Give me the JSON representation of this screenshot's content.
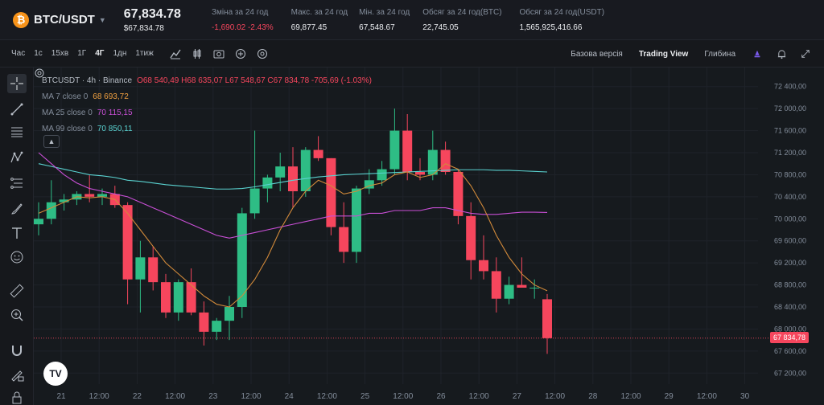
{
  "header": {
    "coin_symbol": "₿",
    "pair": "BTC/USDT",
    "price": "67,834.78",
    "price_usd": "$67,834.78",
    "stats": [
      {
        "label": "Зміна за 24 год",
        "value": "-1,690.02 -2.43%",
        "negative": true
      },
      {
        "label": "Макс. за 24 год",
        "value": "69,877.45"
      },
      {
        "label": "Мін. за 24 год",
        "value": "67,548.67"
      },
      {
        "label": "Обсяг за 24 год(BTC)",
        "value": "22,745.05"
      },
      {
        "label": "Обсяг за 24 год(USDT)",
        "value": "1,565,925,416.66"
      }
    ]
  },
  "toolbar": {
    "timeframes": [
      "Час",
      "1с",
      "15хв",
      "1Г",
      "4Г",
      "1дн",
      "1тиж"
    ],
    "active_timeframe": "4Г",
    "tool_icons": [
      "indicator-icon",
      "chart-type-icon",
      "screenshot-icon",
      "add-icon",
      "settings-icon"
    ],
    "view_tabs": [
      "Базова версія",
      "Trading View",
      "Глибина"
    ],
    "active_view": "Trading View",
    "right_icons": [
      "profile-icon",
      "alert-icon",
      "fullscreen-icon"
    ]
  },
  "left_tools": [
    "crosshair-icon",
    "trendline-icon",
    "horizontal-lines-icon",
    "pattern-icon",
    "fib-icon",
    "brush-icon",
    "text-icon",
    "emoji-icon",
    "ruler-icon",
    "zoom-in-icon",
    "magnet-icon",
    "lock-drawing-icon",
    "lock-icon"
  ],
  "legend": {
    "title": "BTCUSDT · 4h · Binance",
    "ohlc": "O68 540,49 H68 635,07 L67 548,67 C67 834,78 -705,69 (-1.03%)",
    "ma": [
      {
        "label": "MA 7 close 0",
        "value": "68 693,72",
        "color": "#f0a040"
      },
      {
        "label": "MA 25 close 0",
        "value": "70 115,15",
        "color": "#c94fd6"
      },
      {
        "label": "MA 99 close 0",
        "value": "70 850,11",
        "color": "#5ad3d1"
      }
    ]
  },
  "last_price_tag": "67 834,78",
  "logo_text": "TV",
  "chart_data": {
    "type": "candlestick",
    "y_ticks": [
      "72 400,00",
      "72 000,00",
      "71 600,00",
      "71 200,00",
      "70 800,00",
      "70 400,00",
      "70 000,00",
      "69 600,00",
      "69 200,00",
      "68 800,00",
      "68 400,00",
      "68 000,00",
      "67 600,00",
      "67 200,00"
    ],
    "x_ticks": [
      "21",
      "12:00",
      "22",
      "12:00",
      "23",
      "12:00",
      "24",
      "12:00",
      "25",
      "12:00",
      "26",
      "12:00",
      "27",
      "12:00",
      "28",
      "12:00",
      "29",
      "12:00",
      "30"
    ],
    "ylim": [
      67000,
      72600
    ],
    "candles": [
      [
        69900,
        70300,
        69700,
        70000
      ],
      [
        70000,
        70700,
        69900,
        70300
      ],
      [
        70300,
        70450,
        70150,
        70350
      ],
      [
        70350,
        70500,
        70250,
        70450
      ],
      [
        70450,
        70800,
        70300,
        70400
      ],
      [
        70400,
        70550,
        70250,
        70450
      ],
      [
        70450,
        70600,
        70200,
        70250
      ],
      [
        70250,
        70300,
        68450,
        68900
      ],
      [
        68900,
        69600,
        68300,
        69300
      ],
      [
        69300,
        69500,
        68700,
        68850
      ],
      [
        68850,
        69000,
        68200,
        68300
      ],
      [
        68300,
        68900,
        68150,
        68850
      ],
      [
        68850,
        69100,
        68250,
        68300
      ],
      [
        68300,
        68500,
        67700,
        67950
      ],
      [
        67950,
        68200,
        67800,
        68150
      ],
      [
        68150,
        68600,
        67800,
        68400
      ],
      [
        68400,
        70200,
        68200,
        70100
      ],
      [
        70100,
        71600,
        70000,
        70550
      ],
      [
        70550,
        70800,
        70300,
        70750
      ],
      [
        70750,
        71200,
        70500,
        70950
      ],
      [
        70950,
        71300,
        70200,
        70500
      ],
      [
        70500,
        71300,
        70400,
        71250
      ],
      [
        71250,
        71500,
        71050,
        71100
      ],
      [
        71100,
        71100,
        69700,
        69850
      ],
      [
        69850,
        70300,
        69200,
        69400
      ],
      [
        69400,
        70600,
        69200,
        70550
      ],
      [
        70550,
        70900,
        70450,
        70700
      ],
      [
        70700,
        71050,
        70600,
        70900
      ],
      [
        70900,
        72000,
        70800,
        71600
      ],
      [
        71600,
        71900,
        70700,
        70850
      ],
      [
        70850,
        71100,
        70700,
        70800
      ],
      [
        70800,
        71600,
        70700,
        71250
      ],
      [
        71250,
        71400,
        70800,
        70850
      ],
      [
        70850,
        70900,
        69900,
        70050
      ],
      [
        70050,
        70300,
        68900,
        69250
      ],
      [
        69250,
        69700,
        68900,
        69050
      ],
      [
        69050,
        69300,
        68300,
        68550
      ],
      [
        68550,
        68950,
        68450,
        68800
      ],
      [
        68800,
        69300,
        68750,
        68750
      ],
      [
        68750,
        68900,
        68550,
        68750
      ],
      [
        68540,
        68635,
        67548,
        67834
      ]
    ],
    "ma7": [
      70100,
      70200,
      70300,
      70400,
      70380,
      70400,
      70350,
      70100,
      69800,
      69500,
      69200,
      69000,
      68800,
      68600,
      68450,
      68400,
      68600,
      68900,
      69300,
      69800,
      70200,
      70500,
      70700,
      70600,
      70450,
      70500,
      70600,
      70650,
      70800,
      70850,
      70750,
      70800,
      71000,
      70900,
      70600,
      70200,
      69700,
      69300,
      69000,
      68800,
      68693
    ],
    "ma25": [
      71200,
      71000,
      70800,
      70650,
      70550,
      70500,
      70450,
      70400,
      70300,
      70200,
      70100,
      70000,
      69900,
      69800,
      69700,
      69650,
      69700,
      69750,
      69800,
      69850,
      69900,
      69950,
      70000,
      70050,
      70050,
      70050,
      70100,
      70100,
      70150,
      70150,
      70150,
      70200,
      70200,
      70150,
      70100,
      70080,
      70080,
      70100,
      70120,
      70120,
      70115
    ],
    "ma99": [
      71000,
      70950,
      70900,
      70850,
      70800,
      70780,
      70750,
      70700,
      70680,
      70650,
      70620,
      70600,
      70580,
      70560,
      70540,
      70540,
      70550,
      70580,
      70620,
      70660,
      70700,
      70730,
      70760,
      70780,
      70800,
      70810,
      70820,
      70830,
      70840,
      70850,
      70860,
      70870,
      70880,
      70890,
      70890,
      70890,
      70880,
      70880,
      70870,
      70860,
      70850
    ]
  }
}
